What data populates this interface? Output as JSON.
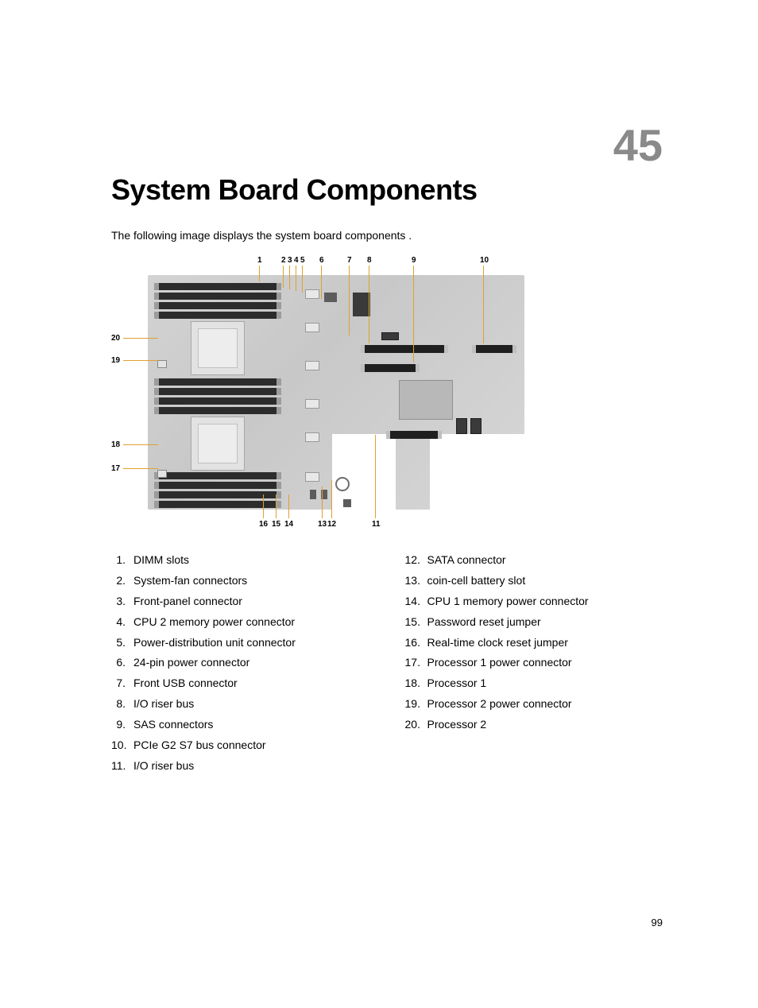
{
  "chapter_number": "45",
  "title": "System Board Components",
  "intro_text": "The following image displays the system board components .",
  "page_number": "99",
  "diagram": {
    "type": "labeled-diagram",
    "callout_color": "#e0a030",
    "board_bg": "#d3d3d3",
    "callouts_top": [
      "1",
      "2",
      "3",
      "4",
      "5",
      "6",
      "7",
      "8",
      "9",
      "10"
    ],
    "callouts_left": [
      "20",
      "19",
      "18",
      "17"
    ],
    "callouts_bottom": [
      "16",
      "15",
      "14",
      "13",
      "12",
      "11"
    ]
  },
  "legend": {
    "col1": [
      {
        "n": "1.",
        "t": "DIMM slots"
      },
      {
        "n": "2.",
        "t": "System-fan connectors"
      },
      {
        "n": "3.",
        "t": "Front-panel connector"
      },
      {
        "n": "4.",
        "t": "CPU 2 memory power connector"
      },
      {
        "n": "5.",
        "t": "Power-distribution unit connector"
      },
      {
        "n": "6.",
        "t": "24-pin power connector"
      },
      {
        "n": "7.",
        "t": "Front USB connector"
      },
      {
        "n": "8.",
        "t": "I/O riser bus"
      },
      {
        "n": "9.",
        "t": "SAS connectors"
      },
      {
        "n": "10.",
        "t": "PCIe G2 S7 bus connector"
      },
      {
        "n": "11.",
        "t": "I/O riser bus"
      }
    ],
    "col2": [
      {
        "n": "12.",
        "t": "SATA connector"
      },
      {
        "n": "13.",
        "t": "coin-cell battery slot"
      },
      {
        "n": "14.",
        "t": "CPU 1 memory power connector"
      },
      {
        "n": "15.",
        "t": "Password reset jumper"
      },
      {
        "n": "16.",
        "t": "Real-time clock reset jumper"
      },
      {
        "n": "17.",
        "t": "Processor 1 power connector"
      },
      {
        "n": "18.",
        "t": "Processor 1"
      },
      {
        "n": "19.",
        "t": "Processor 2 power connector"
      },
      {
        "n": "20.",
        "t": "Processor 2"
      }
    ]
  }
}
